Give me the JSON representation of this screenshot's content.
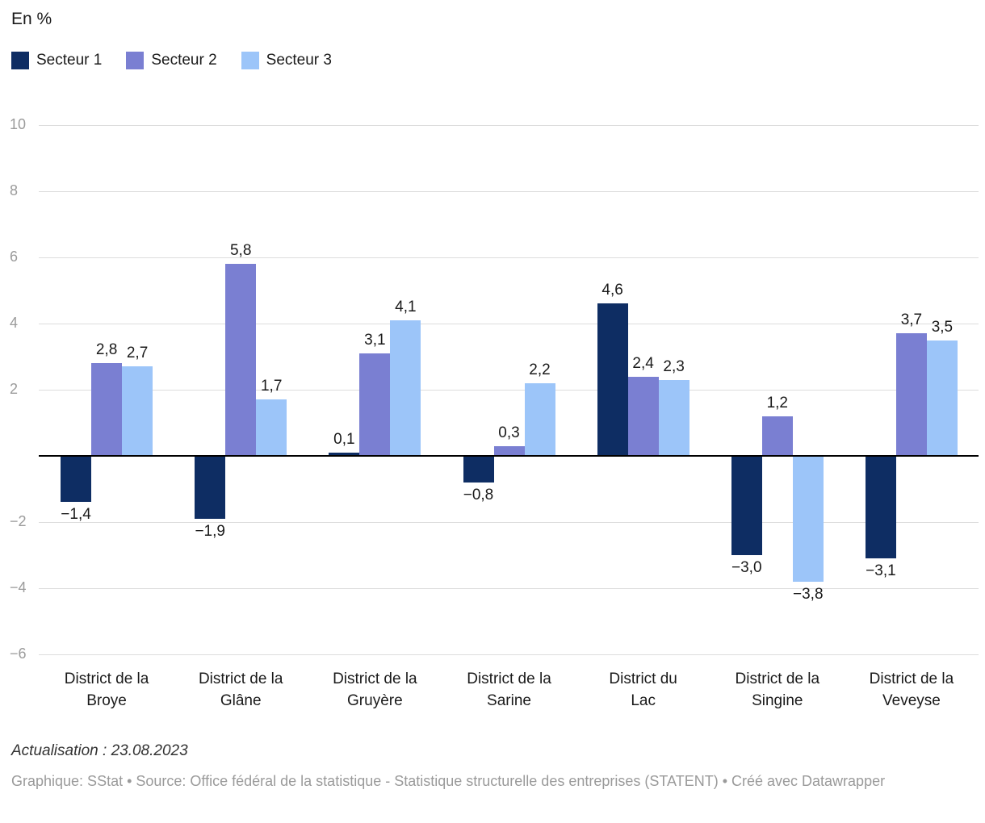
{
  "chart_data": {
    "type": "bar",
    "title": "En %",
    "categories": [
      [
        "District de la",
        "Broye"
      ],
      [
        "District de la",
        "Glâne"
      ],
      [
        "District de la",
        "Gruyère"
      ],
      [
        "District de la",
        "Sarine"
      ],
      [
        "District du",
        "Lac"
      ],
      [
        "District de la",
        "Singine"
      ],
      [
        "District de la",
        "Veveyse"
      ]
    ],
    "series": [
      {
        "name": "Secteur 1",
        "color": "#0e2d63",
        "values": [
          -1.4,
          -1.9,
          0.1,
          -0.8,
          4.6,
          -3.0,
          -3.1
        ],
        "labels": [
          "−1,4",
          "−1,9",
          "0,1",
          "−0,8",
          "4,6",
          "−3,0",
          "−3,1"
        ]
      },
      {
        "name": "Secteur 2",
        "color": "#7a7fd2",
        "values": [
          2.8,
          5.8,
          3.1,
          0.3,
          2.4,
          1.2,
          3.7
        ],
        "labels": [
          "2,8",
          "5,8",
          "3,1",
          "0,3",
          "2,4",
          "1,2",
          "3,7"
        ]
      },
      {
        "name": "Secteur 3",
        "color": "#9cc5f9",
        "values": [
          2.7,
          1.7,
          4.1,
          2.2,
          2.3,
          -3.8,
          3.5
        ],
        "labels": [
          "2,7",
          "1,7",
          "4,1",
          "2,2",
          "2,3",
          "−3,8",
          "3,5"
        ]
      }
    ],
    "y_ticks": [
      10,
      8,
      6,
      4,
      2,
      -2,
      -4,
      -6
    ],
    "y_tick_labels": [
      "10",
      "8",
      "6",
      "4",
      "2",
      "−2",
      "−4",
      "−6"
    ],
    "ylim": [
      -6.8,
      10.4
    ],
    "grid": true,
    "legend_position": "top",
    "value_label_decimal_separator": ","
  },
  "footer": {
    "actualisation": "Actualisation : 23.08.2023",
    "credits": "Graphique: SStat • Source: Office fédéral de la statistique - Statistique structurelle des entreprises (STATENT) • Créé avec Datawrapper"
  }
}
